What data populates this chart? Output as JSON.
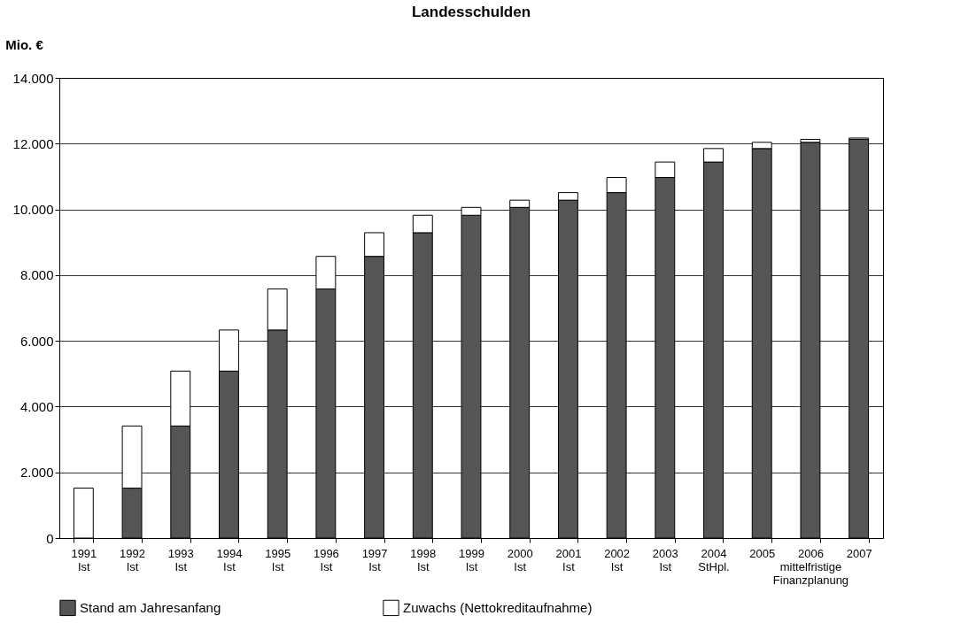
{
  "chart_data": {
    "type": "bar",
    "title": "Landesschulden",
    "ylabel": "Mio. €",
    "stacked": true,
    "categories": [
      "1991\nIst",
      "1992\nIst",
      "1993\nIst",
      "1994\nIst",
      "1995\nIst",
      "1996\nIst",
      "1997\nIst",
      "1998\nIst",
      "1999\nIst",
      "2000\nIst",
      "2001\nIst",
      "2002\nIst",
      "2003\nIst",
      "2004\nStHpl.",
      "2005",
      "2006\nmittelfristige\nFinanzplanung",
      "2007"
    ],
    "series": [
      {
        "name": "Stand am Jahresanfang",
        "color": "#555555",
        "values": [
          0,
          1520,
          3410,
          5080,
          6330,
          7580,
          8570,
          9290,
          9820,
          10060,
          10280,
          10510,
          10970,
          11440,
          11850,
          12040,
          12130
        ]
      },
      {
        "name": "Zuwachs (Nettokreditaufnahme)",
        "color": "#ffffff",
        "values": [
          1520,
          1890,
          1670,
          1250,
          1250,
          990,
          720,
          530,
          240,
          220,
          230,
          460,
          470,
          410,
          190,
          90,
          40
        ]
      }
    ],
    "ylim": [
      0,
      14000
    ],
    "yticks": [
      {
        "value": 0,
        "label": "0"
      },
      {
        "value": 2000,
        "label": "2.000"
      },
      {
        "value": 4000,
        "label": "4.000"
      },
      {
        "value": 6000,
        "label": "6.000"
      },
      {
        "value": 8000,
        "label": "8.000"
      },
      {
        "value": 10000,
        "label": "10.000"
      },
      {
        "value": 12000,
        "label": "12.000"
      },
      {
        "value": 14000,
        "label": "14.000"
      }
    ],
    "grid": "y",
    "legend": "bottom"
  }
}
